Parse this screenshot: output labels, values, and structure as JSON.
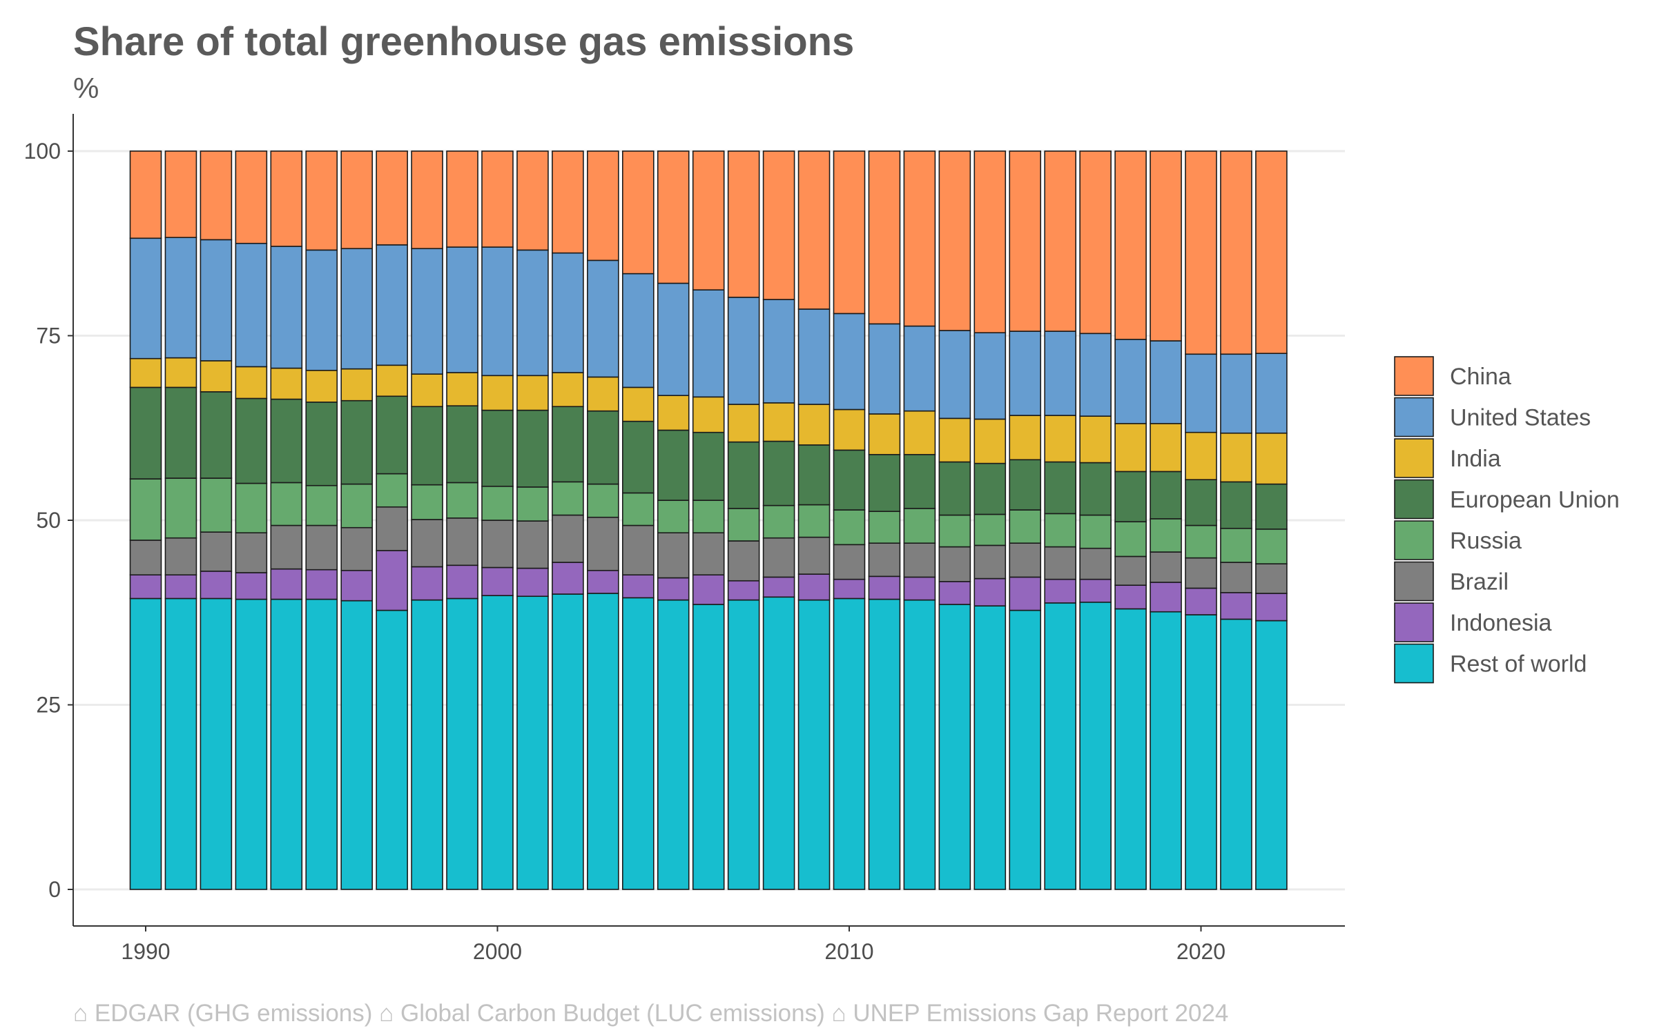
{
  "chart_data": {
    "type": "bar",
    "stacked": true,
    "title": "Share of total greenhouse gas emissions",
    "subtitle": "%",
    "xlabel": "",
    "ylabel": "",
    "ylim": [
      0,
      100
    ],
    "yticks": [
      0,
      25,
      50,
      75,
      100
    ],
    "xticks": [
      1990,
      2000,
      2010,
      2020
    ],
    "xlim": [
      1988,
      2024
    ],
    "grid": "horizontal",
    "legend_position": "right",
    "source": "⌂ EDGAR (GHG emissions) ⌂ Global Carbon Budget (LUC emissions) ⌂ UNEP Emissions Gap Report 2024",
    "categories": [
      1990,
      1991,
      1992,
      1993,
      1994,
      1995,
      1996,
      1997,
      1998,
      1999,
      2000,
      2001,
      2002,
      2003,
      2004,
      2005,
      2006,
      2007,
      2008,
      2009,
      2010,
      2011,
      2012,
      2013,
      2014,
      2015,
      2016,
      2017,
      2018,
      2019,
      2020,
      2021,
      2022
    ],
    "series": [
      {
        "name": "Rest of world",
        "color": "#17becf",
        "values": [
          39.4,
          39.4,
          39.4,
          39.3,
          39.3,
          39.3,
          39.1,
          37.8,
          39.2,
          39.4,
          39.8,
          39.7,
          40.0,
          40.1,
          39.5,
          39.2,
          38.6,
          39.2,
          39.6,
          39.2,
          39.4,
          39.3,
          39.2,
          38.6,
          38.4,
          37.8,
          38.8,
          38.9,
          38.0,
          37.6,
          37.2,
          36.6,
          36.4
        ]
      },
      {
        "name": "Indonesia",
        "color": "#9467bd",
        "values": [
          3.2,
          3.2,
          3.7,
          3.6,
          4.1,
          4.0,
          4.1,
          8.1,
          4.5,
          4.5,
          3.8,
          3.8,
          4.3,
          3.1,
          3.1,
          3.0,
          4.0,
          2.6,
          2.7,
          3.5,
          2.6,
          3.1,
          3.1,
          3.1,
          3.7,
          4.5,
          3.2,
          3.1,
          3.2,
          4.0,
          3.6,
          3.6,
          3.7
        ]
      },
      {
        "name": "Brazil",
        "color": "#7f7f7f",
        "values": [
          4.7,
          5.0,
          5.3,
          5.4,
          5.9,
          6.0,
          5.8,
          5.9,
          6.4,
          6.4,
          6.4,
          6.4,
          6.4,
          7.2,
          6.7,
          6.1,
          5.7,
          5.4,
          5.3,
          5.0,
          4.7,
          4.5,
          4.6,
          4.7,
          4.5,
          4.6,
          4.4,
          4.2,
          3.9,
          4.1,
          4.1,
          4.1,
          4.0
        ]
      },
      {
        "name": "Russia",
        "color": "#66aa6e",
        "values": [
          8.3,
          8.1,
          7.3,
          6.7,
          5.8,
          5.4,
          5.9,
          4.5,
          4.7,
          4.8,
          4.6,
          4.6,
          4.5,
          4.5,
          4.4,
          4.4,
          4.4,
          4.4,
          4.4,
          4.4,
          4.7,
          4.3,
          4.7,
          4.3,
          4.2,
          4.5,
          4.5,
          4.5,
          4.7,
          4.5,
          4.4,
          4.6,
          4.7
        ]
      },
      {
        "name": "European Union",
        "color": "#4a7f50",
        "values": [
          12.4,
          12.3,
          11.7,
          11.5,
          11.3,
          11.3,
          11.3,
          10.5,
          10.6,
          10.4,
          10.3,
          10.4,
          10.2,
          9.9,
          9.7,
          9.5,
          9.2,
          9.0,
          8.7,
          8.1,
          8.1,
          7.7,
          7.3,
          7.2,
          6.9,
          6.8,
          7.0,
          7.1,
          6.8,
          6.4,
          6.2,
          6.3,
          6.1
        ]
      },
      {
        "name": "India",
        "color": "#e6b82e",
        "values": [
          3.9,
          4.0,
          4.2,
          4.3,
          4.2,
          4.3,
          4.3,
          4.2,
          4.4,
          4.5,
          4.7,
          4.7,
          4.6,
          4.6,
          4.6,
          4.7,
          4.8,
          5.1,
          5.2,
          5.5,
          5.5,
          5.5,
          5.9,
          5.9,
          6.0,
          6.0,
          6.3,
          6.3,
          6.5,
          6.5,
          6.4,
          6.6,
          6.9
        ]
      },
      {
        "name": "United States",
        "color": "#669dd0",
        "values": [
          16.3,
          16.3,
          16.4,
          16.7,
          16.5,
          16.3,
          16.3,
          16.3,
          17.0,
          17.0,
          17.4,
          17.0,
          16.2,
          15.8,
          15.4,
          15.2,
          14.5,
          14.5,
          14.0,
          12.9,
          13.0,
          12.2,
          11.5,
          11.9,
          11.7,
          11.4,
          11.4,
          11.2,
          11.4,
          11.2,
          10.6,
          10.7,
          10.8
        ]
      },
      {
        "name": "China",
        "color": "#ff8f55",
        "values": [
          11.8,
          11.7,
          12.0,
          12.5,
          12.9,
          13.4,
          13.2,
          12.7,
          13.2,
          13.0,
          13.0,
          13.4,
          13.8,
          14.8,
          16.6,
          17.9,
          18.8,
          19.8,
          20.1,
          21.4,
          22.0,
          23.4,
          23.7,
          24.3,
          24.6,
          24.4,
          24.4,
          24.7,
          25.5,
          25.7,
          27.5,
          27.5,
          27.4
        ]
      }
    ]
  }
}
